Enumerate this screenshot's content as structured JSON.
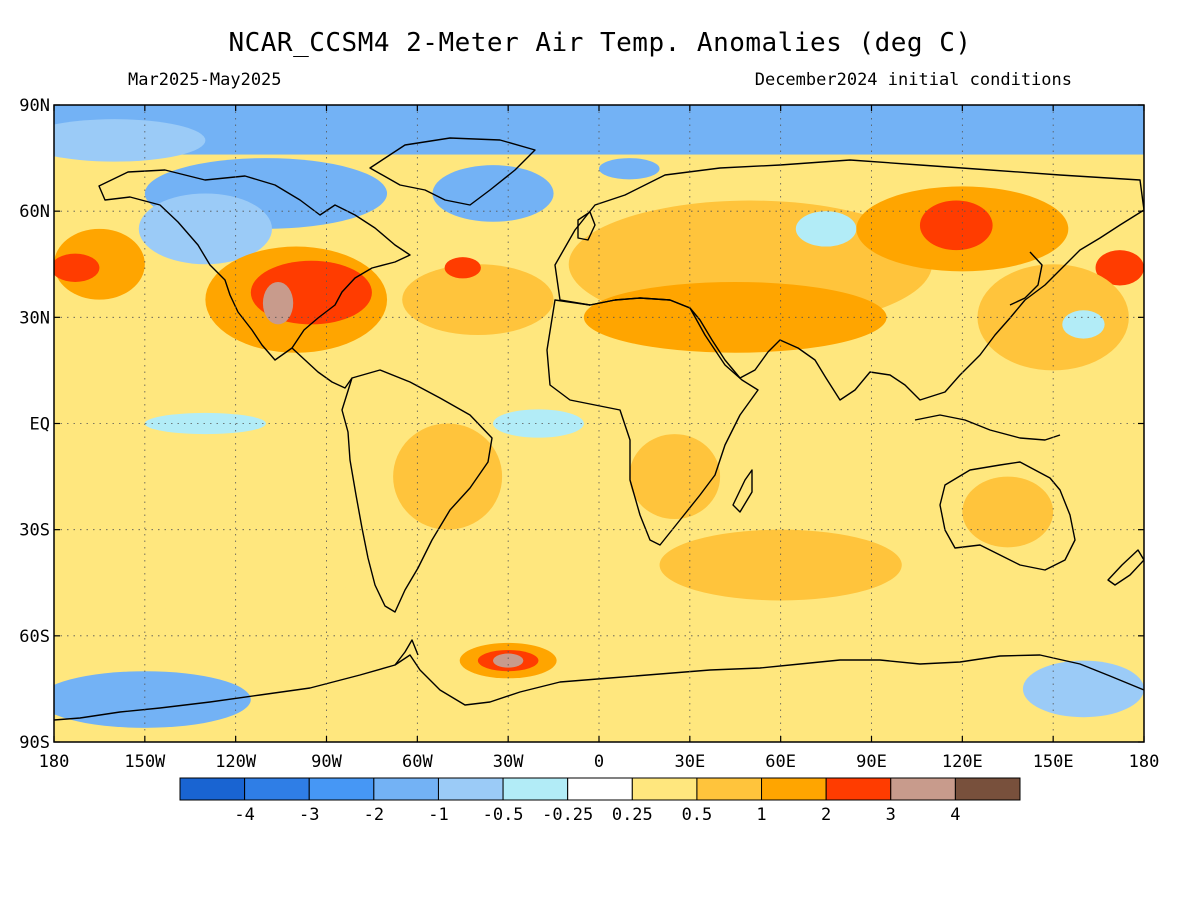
{
  "header": {
    "title": "NCAR_CCSM4 2-Meter Air Temp. Anomalies (deg C)",
    "period": "Mar2025-May2025",
    "init": "December2024 initial conditions"
  },
  "map": {
    "lat_range": [
      -90,
      90
    ],
    "lon_range": [
      -180,
      180
    ],
    "lat_ticks": [
      {
        "lat": 90,
        "label": "90N"
      },
      {
        "lat": 60,
        "label": "60N"
      },
      {
        "lat": 30,
        "label": "30N"
      },
      {
        "lat": 0,
        "label": "EQ"
      },
      {
        "lat": -30,
        "label": "30S"
      },
      {
        "lat": -60,
        "label": "60S"
      },
      {
        "lat": -90,
        "label": "90S"
      }
    ],
    "lon_ticks": [
      {
        "lon": -180,
        "label": "180"
      },
      {
        "lon": -150,
        "label": "150W"
      },
      {
        "lon": -120,
        "label": "120W"
      },
      {
        "lon": -90,
        "label": "90W"
      },
      {
        "lon": -60,
        "label": "60W"
      },
      {
        "lon": -30,
        "label": "30W"
      },
      {
        "lon": 0,
        "label": "0"
      },
      {
        "lon": 30,
        "label": "30E"
      },
      {
        "lon": 60,
        "label": "60E"
      },
      {
        "lon": 90,
        "label": "90E"
      },
      {
        "lon": 120,
        "label": "120E"
      },
      {
        "lon": 150,
        "label": "150E"
      },
      {
        "lon": 180,
        "label": "180"
      }
    ],
    "grid": true,
    "colors": {
      "vneg": "#73b2f5",
      "neg": "#9bcbf7",
      "slight_neg": "#b2ecf7",
      "neutral": "#ffffff",
      "slight_pos": "#ffe77e",
      "pos": "#ffc43c",
      "strong_pos": "#ffa500",
      "vstrong_pos": "#ff3c00",
      "extreme": "#c89b8c"
    },
    "anomaly_regions": [
      {
        "c": "vneg",
        "lon": -180,
        "lat": 90,
        "lonw": 360,
        "latw": 14
      },
      {
        "c": "neg",
        "lon": -160,
        "lat": 80,
        "rx": 30,
        "ry": 6
      },
      {
        "c": "vneg",
        "lon": -110,
        "lat": 65,
        "rx": 40,
        "ry": 10
      },
      {
        "c": "neg",
        "lon": -130,
        "lat": 55,
        "rx": 22,
        "ry": 10
      },
      {
        "c": "vneg",
        "lon": -35,
        "lat": 65,
        "rx": 20,
        "ry": 8
      },
      {
        "c": "vneg",
        "lon": 10,
        "lat": 72,
        "rx": 10,
        "ry": 3
      },
      {
        "c": "strong_pos",
        "lon": -165,
        "lat": 45,
        "rx": 15,
        "ry": 10
      },
      {
        "c": "vstrong_pos",
        "lon": -173,
        "lat": 44,
        "rx": 8,
        "ry": 4
      },
      {
        "c": "strong_pos",
        "lon": -100,
        "lat": 35,
        "rx": 30,
        "ry": 15
      },
      {
        "c": "vstrong_pos",
        "lon": -95,
        "lat": 37,
        "rx": 20,
        "ry": 9
      },
      {
        "c": "extreme",
        "lon": -106,
        "lat": 34,
        "rx": 5,
        "ry": 6
      },
      {
        "c": "pos",
        "lon": -40,
        "lat": 35,
        "rx": 25,
        "ry": 10
      },
      {
        "c": "vstrong_pos",
        "lon": -45,
        "lat": 44,
        "rx": 6,
        "ry": 3
      },
      {
        "c": "pos",
        "lon": 50,
        "lat": 45,
        "rx": 60,
        "ry": 18
      },
      {
        "c": "strong_pos",
        "lon": 45,
        "lat": 30,
        "rx": 50,
        "ry": 10
      },
      {
        "c": "slight_neg",
        "lon": 75,
        "lat": 55,
        "rx": 10,
        "ry": 5
      },
      {
        "c": "strong_pos",
        "lon": 120,
        "lat": 55,
        "rx": 35,
        "ry": 12
      },
      {
        "c": "vstrong_pos",
        "lon": 118,
        "lat": 56,
        "rx": 12,
        "ry": 7
      },
      {
        "c": "vstrong_pos",
        "lon": 172,
        "lat": 44,
        "rx": 8,
        "ry": 5
      },
      {
        "c": "pos",
        "lon": 150,
        "lat": 30,
        "rx": 25,
        "ry": 15
      },
      {
        "c": "slight_neg",
        "lon": 160,
        "lat": 28,
        "rx": 7,
        "ry": 4
      },
      {
        "c": "slight_pos",
        "lon": -150,
        "lat": 0,
        "rx": 30,
        "ry": 8
      },
      {
        "c": "slight_neg",
        "lon": -130,
        "lat": 0,
        "rx": 20,
        "ry": 3
      },
      {
        "c": "slight_neg",
        "lon": -20,
        "lat": 0,
        "rx": 15,
        "ry": 4
      },
      {
        "c": "pos",
        "lon": -50,
        "lat": -15,
        "rx": 18,
        "ry": 15
      },
      {
        "c": "pos",
        "lon": 25,
        "lat": -15,
        "rx": 15,
        "ry": 12
      },
      {
        "c": "pos",
        "lon": 135,
        "lat": -25,
        "rx": 15,
        "ry": 10
      },
      {
        "c": "slight_pos",
        "lon": -120,
        "lat": -40,
        "rx": 40,
        "ry": 15
      },
      {
        "c": "pos",
        "lon": 60,
        "lat": -40,
        "rx": 40,
        "ry": 10
      },
      {
        "c": "strong_pos",
        "lon": -30,
        "lat": -67,
        "rx": 16,
        "ry": 5
      },
      {
        "c": "vstrong_pos",
        "lon": -30,
        "lat": -67,
        "rx": 10,
        "ry": 3
      },
      {
        "c": "extreme",
        "lon": -30,
        "lat": -67,
        "rx": 5,
        "ry": 2
      },
      {
        "c": "vneg",
        "lon": -150,
        "lat": -78,
        "rx": 35,
        "ry": 8
      },
      {
        "c": "neg",
        "lon": 160,
        "lat": -75,
        "rx": 20,
        "ry": 8
      }
    ]
  },
  "colorbar": {
    "colors": [
      "#1964d2",
      "#2f7ee6",
      "#4697f5",
      "#73b2f5",
      "#9bcbf7",
      "#b2ecf7",
      "#ffffff",
      "#ffe77e",
      "#ffc43c",
      "#ffa500",
      "#ff3c00",
      "#c89b8c",
      "#78503c"
    ],
    "labels": [
      "-4",
      "-3",
      "-2",
      "-1",
      "-0.5",
      "-0.25",
      "0.25",
      "0.5",
      "1",
      "2",
      "3",
      "4"
    ]
  }
}
